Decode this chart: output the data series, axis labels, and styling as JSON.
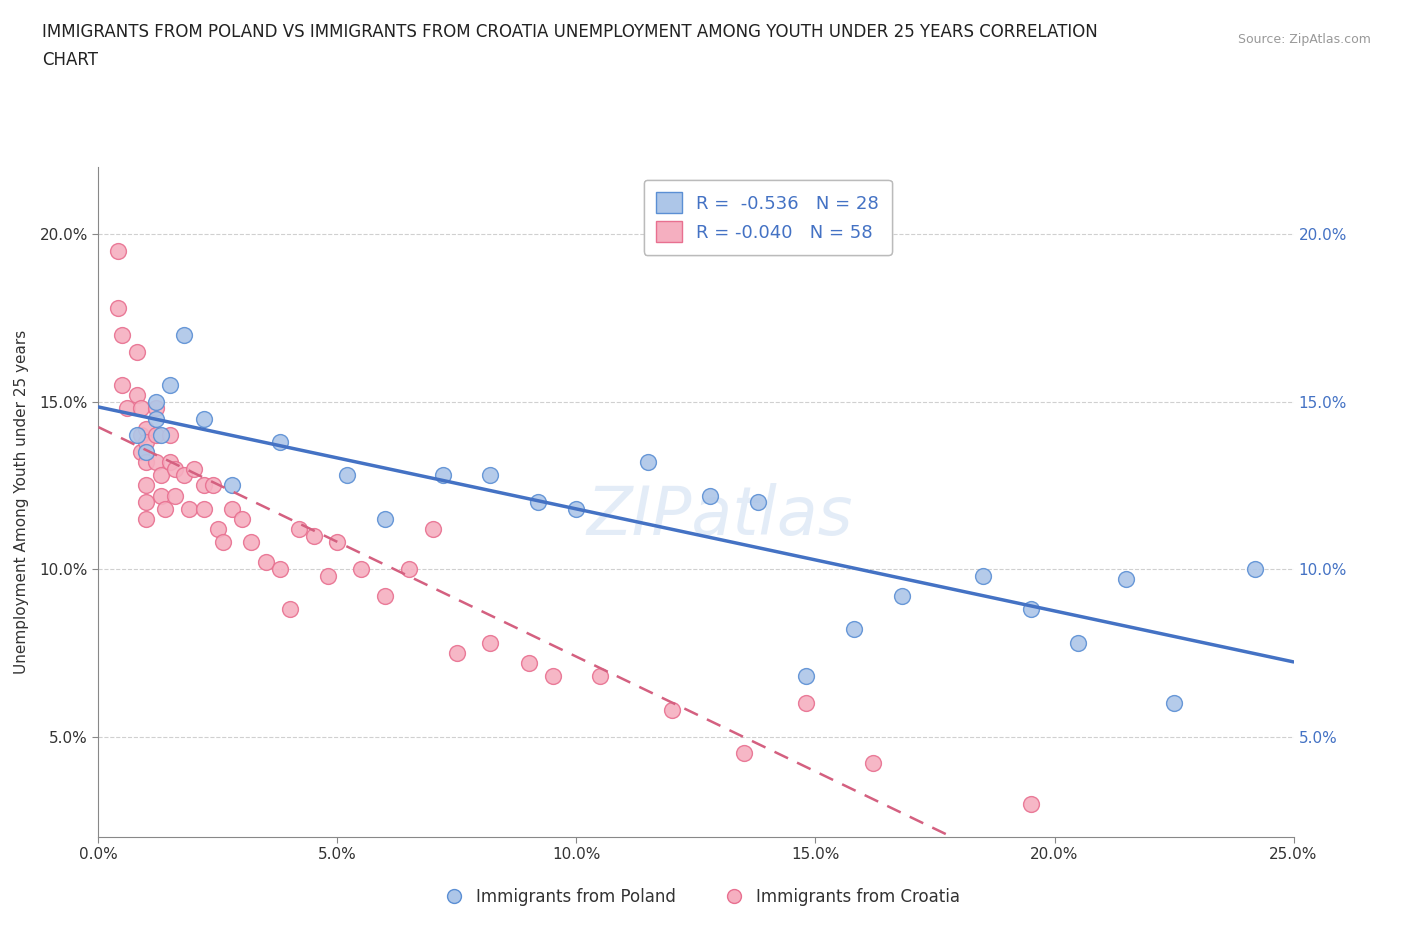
{
  "title_line1": "IMMIGRANTS FROM POLAND VS IMMIGRANTS FROM CROATIA UNEMPLOYMENT AMONG YOUTH UNDER 25 YEARS CORRELATION",
  "title_line2": "CHART",
  "source_text": "Source: ZipAtlas.com",
  "ylabel": "Unemployment Among Youth under 25 years",
  "xlim": [
    0.0,
    0.25
  ],
  "ylim": [
    0.02,
    0.22
  ],
  "x_ticks": [
    0.0,
    0.05,
    0.1,
    0.15,
    0.2,
    0.25
  ],
  "x_tick_labels": [
    "0.0%",
    "5.0%",
    "10.0%",
    "15.0%",
    "20.0%",
    "25.0%"
  ],
  "y_ticks": [
    0.05,
    0.1,
    0.15,
    0.2
  ],
  "y_tick_labels": [
    "5.0%",
    "10.0%",
    "15.0%",
    "20.0%"
  ],
  "poland_color": "#adc6e8",
  "croatia_color": "#f5afc0",
  "poland_edge_color": "#5b8fd4",
  "croatia_edge_color": "#e87090",
  "poland_line_color": "#4472c4",
  "croatia_line_color": "#d46080",
  "legend_r_poland": "R =  -0.536",
  "legend_n_poland": "N = 28",
  "legend_r_croatia": "R = -0.040",
  "legend_n_croatia": "N = 58",
  "legend_label_poland": "Immigrants from Poland",
  "legend_label_croatia": "Immigrants from Croatia",
  "watermark": "ZIPatlas",
  "poland_x": [
    0.008,
    0.01,
    0.012,
    0.012,
    0.013,
    0.015,
    0.018,
    0.022,
    0.028,
    0.038,
    0.052,
    0.06,
    0.072,
    0.082,
    0.092,
    0.1,
    0.115,
    0.128,
    0.138,
    0.148,
    0.158,
    0.168,
    0.185,
    0.195,
    0.205,
    0.215,
    0.225,
    0.242
  ],
  "poland_y": [
    0.14,
    0.135,
    0.15,
    0.145,
    0.14,
    0.155,
    0.17,
    0.145,
    0.125,
    0.138,
    0.128,
    0.115,
    0.128,
    0.128,
    0.12,
    0.118,
    0.132,
    0.122,
    0.12,
    0.068,
    0.082,
    0.092,
    0.098,
    0.088,
    0.078,
    0.097,
    0.06,
    0.1
  ],
  "croatia_x": [
    0.004,
    0.004,
    0.005,
    0.005,
    0.006,
    0.008,
    0.008,
    0.009,
    0.009,
    0.009,
    0.01,
    0.01,
    0.01,
    0.01,
    0.01,
    0.01,
    0.012,
    0.012,
    0.012,
    0.013,
    0.013,
    0.014,
    0.015,
    0.015,
    0.016,
    0.016,
    0.018,
    0.019,
    0.02,
    0.022,
    0.022,
    0.024,
    0.025,
    0.026,
    0.028,
    0.03,
    0.032,
    0.035,
    0.038,
    0.04,
    0.042,
    0.045,
    0.048,
    0.05,
    0.055,
    0.06,
    0.065,
    0.07,
    0.075,
    0.082,
    0.09,
    0.095,
    0.105,
    0.12,
    0.135,
    0.148,
    0.162,
    0.195
  ],
  "croatia_y": [
    0.195,
    0.178,
    0.17,
    0.155,
    0.148,
    0.165,
    0.152,
    0.148,
    0.14,
    0.135,
    0.142,
    0.138,
    0.132,
    0.125,
    0.12,
    0.115,
    0.148,
    0.14,
    0.132,
    0.128,
    0.122,
    0.118,
    0.14,
    0.132,
    0.13,
    0.122,
    0.128,
    0.118,
    0.13,
    0.125,
    0.118,
    0.125,
    0.112,
    0.108,
    0.118,
    0.115,
    0.108,
    0.102,
    0.1,
    0.088,
    0.112,
    0.11,
    0.098,
    0.108,
    0.1,
    0.092,
    0.1,
    0.112,
    0.075,
    0.078,
    0.072,
    0.068,
    0.068,
    0.058,
    0.045,
    0.06,
    0.042,
    0.03
  ],
  "background_color": "#ffffff",
  "grid_color": "#d0d0d0"
}
